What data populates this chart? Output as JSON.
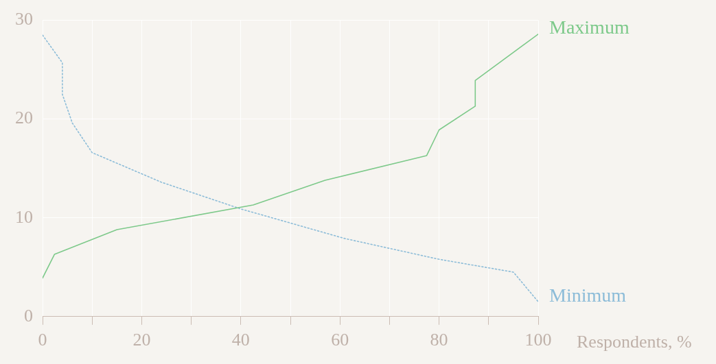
{
  "chart_data": {
    "type": "line",
    "xlabel": "Respondents, %",
    "xlim": [
      0,
      100
    ],
    "ylim": [
      0,
      30
    ],
    "xticks": [
      0,
      {
        "value": 10,
        "label": null
      },
      20,
      {
        "value": 30,
        "label": null
      },
      40,
      {
        "value": 50,
        "label": null
      },
      60,
      {
        "value": 70,
        "label": null
      },
      80,
      {
        "value": 90,
        "label": null
      },
      100
    ],
    "yticks": [
      0,
      10,
      20,
      30
    ],
    "grid": true,
    "legend": false,
    "marker": "none",
    "series": [
      {
        "name": "Maximum",
        "color": "#7dc98a",
        "line_style": "solid",
        "x": [
          0,
          2.4,
          15,
          42.5,
          57,
          77.5,
          80,
          87.3,
          87.3,
          100
        ],
        "values": [
          3.9,
          6.3,
          8.8,
          11.3,
          13.8,
          16.3,
          18.9,
          21.3,
          23.9,
          28.6
        ]
      },
      {
        "name": "Minimum",
        "color": "#8cbcd8",
        "line_style": "dotted",
        "x": [
          0,
          4,
          4,
          6,
          10,
          24,
          40,
          61,
          80,
          95,
          100
        ],
        "values": [
          28.5,
          25.7,
          22.5,
          19.6,
          16.6,
          13.6,
          10.9,
          7.9,
          5.8,
          4.5,
          1.5
        ]
      }
    ]
  }
}
